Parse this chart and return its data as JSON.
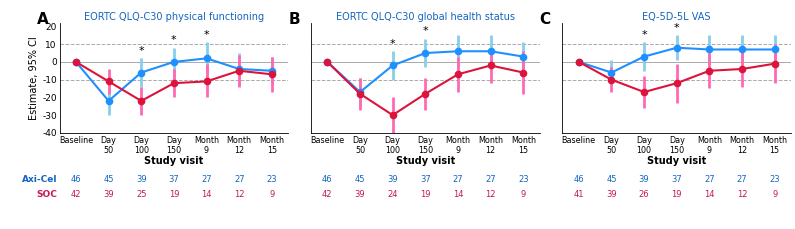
{
  "panels": [
    {
      "label": "A",
      "title": "EORTC QLQ-C30 physical functioning",
      "blue_mean": [
        0,
        -22,
        -6,
        0,
        2,
        -4,
        -5
      ],
      "blue_ci_lo": [
        0,
        -30,
        -14,
        -8,
        -7,
        -13,
        -13
      ],
      "blue_ci_hi": [
        0,
        -14,
        2,
        8,
        11,
        5,
        3
      ],
      "pink_mean": [
        0,
        -11,
        -22,
        -12,
        -11,
        -5,
        -7
      ],
      "pink_ci_lo": [
        0,
        -18,
        -30,
        -20,
        -20,
        -14,
        -17
      ],
      "pink_ci_hi": [
        0,
        -4,
        -14,
        -4,
        -1,
        4,
        3
      ],
      "stars": [
        null,
        null,
        2,
        3,
        4,
        null,
        null
      ],
      "ylim": [
        -40,
        22
      ],
      "yticks": [
        -40,
        -30,
        -20,
        -10,
        0,
        10,
        20
      ],
      "mid_hline": 10,
      "show_ylabel": true,
      "axi_n": [
        46,
        45,
        39,
        37,
        27,
        27,
        23
      ],
      "soc_n": [
        42,
        39,
        25,
        19,
        14,
        12,
        9
      ]
    },
    {
      "label": "B",
      "title": "EORTC QLQ-C30 global health status",
      "blue_mean": [
        0,
        -17,
        -2,
        5,
        6,
        6,
        3
      ],
      "blue_ci_lo": [
        0,
        -25,
        -10,
        -3,
        -3,
        -3,
        -5
      ],
      "blue_ci_hi": [
        0,
        -9,
        6,
        13,
        15,
        15,
        11
      ],
      "pink_mean": [
        0,
        -18,
        -30,
        -18,
        -7,
        -2,
        -6
      ],
      "pink_ci_lo": [
        0,
        -27,
        -40,
        -27,
        -17,
        -12,
        -18
      ],
      "pink_ci_hi": [
        0,
        -9,
        -20,
        -9,
        3,
        8,
        6
      ],
      "stars": [
        null,
        null,
        2,
        3,
        null,
        null,
        null
      ],
      "ylim": [
        -40,
        22
      ],
      "yticks": [
        -40,
        -30,
        -20,
        -10,
        0,
        10,
        20
      ],
      "mid_hline": 10,
      "show_ylabel": false,
      "axi_n": [
        46,
        45,
        39,
        37,
        27,
        27,
        23
      ],
      "soc_n": [
        42,
        39,
        24,
        19,
        14,
        12,
        9
      ]
    },
    {
      "label": "C",
      "title": "EQ-5D-5L VAS",
      "blue_mean": [
        0,
        -6,
        3,
        8,
        7,
        7,
        7
      ],
      "blue_ci_lo": [
        0,
        -13,
        -5,
        1,
        -1,
        -1,
        -1
      ],
      "blue_ci_hi": [
        0,
        1,
        11,
        15,
        15,
        15,
        15
      ],
      "pink_mean": [
        0,
        -10,
        -17,
        -12,
        -5,
        -4,
        -1
      ],
      "pink_ci_lo": [
        0,
        -17,
        -26,
        -23,
        -15,
        -14,
        -12
      ],
      "pink_ci_hi": [
        0,
        -3,
        -8,
        -1,
        5,
        6,
        10
      ],
      "stars": [
        null,
        null,
        2,
        3,
        null,
        null,
        null
      ],
      "ylim": [
        -40,
        22
      ],
      "yticks": [
        -40,
        -30,
        -20,
        -10,
        0,
        10,
        20
      ],
      "mid_hline": 10,
      "show_ylabel": false,
      "axi_n": [
        46,
        45,
        39,
        37,
        27,
        27,
        23
      ],
      "soc_n": [
        41,
        39,
        26,
        19,
        14,
        12,
        9
      ]
    }
  ],
  "xticklabels": [
    "Baseline",
    "Day\n50",
    "Day\n100",
    "Day\n150",
    "Month\n9",
    "Month\n12",
    "Month\n15"
  ],
  "blue_color": "#1E90FF",
  "blue_err_color": "#87CEEB",
  "pink_color": "#DC143C",
  "pink_err_color": "#FF69B4",
  "blue_label_color": "#1565C0",
  "pink_label_color": "#C2185B",
  "hline_color": "#aaaaaa",
  "hline_style": "--",
  "zero_line_color": "#aaaaaa",
  "ylabel": "Estimate, 95% CI",
  "xlabel": "Study visit",
  "background": "#ffffff",
  "axi_label": "Axi-Cel",
  "soc_label": "SOC"
}
